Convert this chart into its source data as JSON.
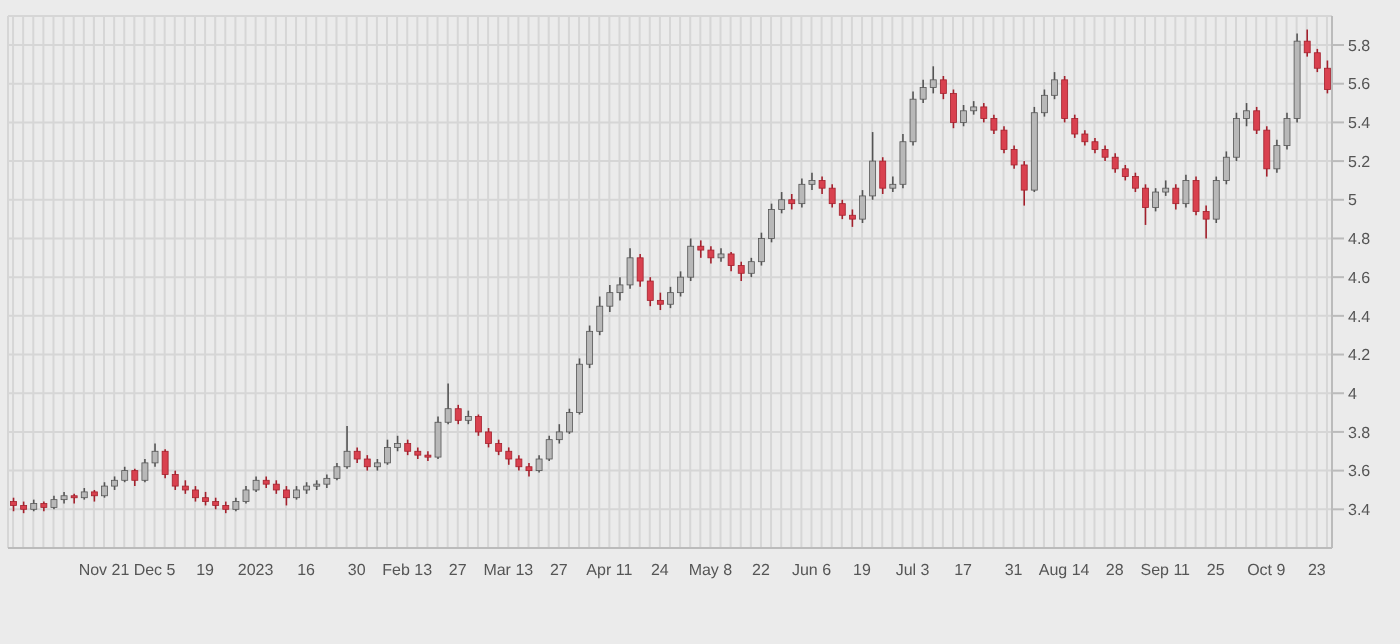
{
  "chart_data": {
    "type": "candlestick",
    "categories": [
      null,
      null,
      null,
      null,
      null,
      null,
      null,
      null,
      null,
      "Nov 21",
      null,
      null,
      null,
      null,
      "Dec 5",
      null,
      null,
      null,
      null,
      "19",
      null,
      null,
      null,
      null,
      "2023",
      null,
      null,
      null,
      null,
      "16",
      null,
      null,
      null,
      null,
      "30",
      null,
      null,
      null,
      null,
      "Feb 13",
      null,
      null,
      null,
      null,
      "27",
      null,
      null,
      null,
      null,
      "Mar 13",
      null,
      null,
      null,
      null,
      "27",
      null,
      null,
      null,
      null,
      "Apr 11",
      null,
      null,
      null,
      null,
      "24",
      null,
      null,
      null,
      null,
      "May 8",
      null,
      null,
      null,
      null,
      "22",
      null,
      null,
      null,
      null,
      "Jun 6",
      null,
      null,
      null,
      null,
      "19",
      null,
      null,
      null,
      null,
      "Jul 3",
      null,
      null,
      null,
      null,
      "17",
      null,
      null,
      null,
      null,
      "31",
      null,
      null,
      null,
      null,
      "Aug 14",
      null,
      null,
      null,
      null,
      "28",
      null,
      null,
      null,
      null,
      "Sep 11",
      null,
      null,
      null,
      null,
      "25",
      null,
      null,
      null,
      null,
      "Oct 9",
      null,
      null,
      null,
      null,
      "23",
      null
    ],
    "ohlc": [
      [
        3.44,
        3.46,
        3.39,
        3.42
      ],
      [
        3.42,
        3.44,
        3.38,
        3.4
      ],
      [
        3.4,
        3.45,
        3.39,
        3.43
      ],
      [
        3.43,
        3.44,
        3.39,
        3.41
      ],
      [
        3.41,
        3.47,
        3.4,
        3.45
      ],
      [
        3.45,
        3.49,
        3.43,
        3.47
      ],
      [
        3.47,
        3.48,
        3.43,
        3.46
      ],
      [
        3.46,
        3.51,
        3.45,
        3.49
      ],
      [
        3.49,
        3.5,
        3.44,
        3.47
      ],
      [
        3.47,
        3.54,
        3.46,
        3.52
      ],
      [
        3.52,
        3.57,
        3.5,
        3.55
      ],
      [
        3.55,
        3.62,
        3.54,
        3.6
      ],
      [
        3.6,
        3.61,
        3.52,
        3.55
      ],
      [
        3.55,
        3.66,
        3.54,
        3.64
      ],
      [
        3.64,
        3.74,
        3.62,
        3.7
      ],
      [
        3.7,
        3.71,
        3.56,
        3.58
      ],
      [
        3.58,
        3.6,
        3.5,
        3.52
      ],
      [
        3.52,
        3.55,
        3.48,
        3.5
      ],
      [
        3.5,
        3.52,
        3.44,
        3.46
      ],
      [
        3.46,
        3.49,
        3.42,
        3.44
      ],
      [
        3.44,
        3.46,
        3.4,
        3.42
      ],
      [
        3.42,
        3.44,
        3.38,
        3.4
      ],
      [
        3.4,
        3.46,
        3.39,
        3.44
      ],
      [
        3.44,
        3.52,
        3.43,
        3.5
      ],
      [
        3.5,
        3.57,
        3.49,
        3.55
      ],
      [
        3.55,
        3.57,
        3.51,
        3.53
      ],
      [
        3.53,
        3.55,
        3.48,
        3.5
      ],
      [
        3.5,
        3.52,
        3.42,
        3.46
      ],
      [
        3.46,
        3.52,
        3.45,
        3.5
      ],
      [
        3.5,
        3.54,
        3.48,
        3.52
      ],
      [
        3.52,
        3.55,
        3.5,
        3.53
      ],
      [
        3.53,
        3.58,
        3.51,
        3.56
      ],
      [
        3.56,
        3.64,
        3.55,
        3.62
      ],
      [
        3.62,
        3.83,
        3.61,
        3.7
      ],
      [
        3.7,
        3.72,
        3.64,
        3.66
      ],
      [
        3.66,
        3.68,
        3.6,
        3.62
      ],
      [
        3.62,
        3.66,
        3.6,
        3.64
      ],
      [
        3.64,
        3.76,
        3.63,
        3.72
      ],
      [
        3.72,
        3.78,
        3.7,
        3.74
      ],
      [
        3.74,
        3.76,
        3.68,
        3.7
      ],
      [
        3.7,
        3.72,
        3.66,
        3.68
      ],
      [
        3.68,
        3.7,
        3.65,
        3.67
      ],
      [
        3.67,
        3.88,
        3.66,
        3.85
      ],
      [
        3.85,
        4.05,
        3.84,
        3.92
      ],
      [
        3.92,
        3.94,
        3.84,
        3.86
      ],
      [
        3.86,
        3.91,
        3.84,
        3.88
      ],
      [
        3.88,
        3.89,
        3.78,
        3.8
      ],
      [
        3.8,
        3.82,
        3.72,
        3.74
      ],
      [
        3.74,
        3.76,
        3.68,
        3.7
      ],
      [
        3.7,
        3.72,
        3.63,
        3.66
      ],
      [
        3.66,
        3.68,
        3.6,
        3.62
      ],
      [
        3.62,
        3.64,
        3.57,
        3.6
      ],
      [
        3.6,
        3.68,
        3.59,
        3.66
      ],
      [
        3.66,
        3.78,
        3.65,
        3.76
      ],
      [
        3.76,
        3.84,
        3.74,
        3.8
      ],
      [
        3.8,
        3.92,
        3.79,
        3.9
      ],
      [
        3.9,
        4.18,
        3.89,
        4.15
      ],
      [
        4.15,
        4.35,
        4.13,
        4.32
      ],
      [
        4.32,
        4.5,
        4.3,
        4.45
      ],
      [
        4.45,
        4.56,
        4.42,
        4.52
      ],
      [
        4.52,
        4.6,
        4.48,
        4.56
      ],
      [
        4.56,
        4.75,
        4.54,
        4.7
      ],
      [
        4.7,
        4.72,
        4.55,
        4.58
      ],
      [
        4.58,
        4.6,
        4.45,
        4.48
      ],
      [
        4.48,
        4.52,
        4.43,
        4.46
      ],
      [
        4.46,
        4.55,
        4.44,
        4.52
      ],
      [
        4.52,
        4.63,
        4.5,
        4.6
      ],
      [
        4.6,
        4.8,
        4.58,
        4.76
      ],
      [
        4.76,
        4.79,
        4.7,
        4.74
      ],
      [
        4.74,
        4.76,
        4.67,
        4.7
      ],
      [
        4.7,
        4.75,
        4.68,
        4.72
      ],
      [
        4.72,
        4.73,
        4.63,
        4.66
      ],
      [
        4.66,
        4.68,
        4.58,
        4.62
      ],
      [
        4.62,
        4.7,
        4.6,
        4.68
      ],
      [
        4.68,
        4.83,
        4.66,
        4.8
      ],
      [
        4.8,
        4.98,
        4.78,
        4.95
      ],
      [
        4.95,
        5.04,
        4.93,
        5.0
      ],
      [
        5.0,
        5.03,
        4.95,
        4.98
      ],
      [
        4.98,
        5.11,
        4.96,
        5.08
      ],
      [
        5.08,
        5.14,
        5.05,
        5.1
      ],
      [
        5.1,
        5.12,
        5.03,
        5.06
      ],
      [
        5.06,
        5.08,
        4.96,
        4.98
      ],
      [
        4.98,
        5.0,
        4.9,
        4.92
      ],
      [
        4.92,
        4.95,
        4.86,
        4.9
      ],
      [
        4.9,
        5.05,
        4.88,
        5.02
      ],
      [
        5.02,
        5.35,
        5.0,
        5.2
      ],
      [
        5.2,
        5.22,
        5.03,
        5.06
      ],
      [
        5.06,
        5.12,
        5.04,
        5.08
      ],
      [
        5.08,
        5.34,
        5.06,
        5.3
      ],
      [
        5.3,
        5.56,
        5.28,
        5.52
      ],
      [
        5.52,
        5.62,
        5.5,
        5.58
      ],
      [
        5.58,
        5.69,
        5.55,
        5.62
      ],
      [
        5.62,
        5.64,
        5.52,
        5.55
      ],
      [
        5.55,
        5.57,
        5.37,
        5.4
      ],
      [
        5.4,
        5.49,
        5.38,
        5.46
      ],
      [
        5.46,
        5.51,
        5.44,
        5.48
      ],
      [
        5.48,
        5.5,
        5.4,
        5.42
      ],
      [
        5.42,
        5.44,
        5.34,
        5.36
      ],
      [
        5.36,
        5.38,
        5.24,
        5.26
      ],
      [
        5.26,
        5.28,
        5.16,
        5.18
      ],
      [
        5.18,
        5.2,
        4.97,
        5.05
      ],
      [
        5.05,
        5.48,
        5.04,
        5.45
      ],
      [
        5.45,
        5.57,
        5.43,
        5.54
      ],
      [
        5.54,
        5.66,
        5.52,
        5.62
      ],
      [
        5.62,
        5.64,
        5.4,
        5.42
      ],
      [
        5.42,
        5.44,
        5.32,
        5.34
      ],
      [
        5.34,
        5.36,
        5.28,
        5.3
      ],
      [
        5.3,
        5.32,
        5.24,
        5.26
      ],
      [
        5.26,
        5.28,
        5.2,
        5.22
      ],
      [
        5.22,
        5.24,
        5.14,
        5.16
      ],
      [
        5.16,
        5.18,
        5.1,
        5.12
      ],
      [
        5.12,
        5.14,
        5.04,
        5.06
      ],
      [
        5.06,
        5.08,
        4.87,
        4.96
      ],
      [
        4.96,
        5.06,
        4.94,
        5.04
      ],
      [
        5.04,
        5.1,
        5.02,
        5.06
      ],
      [
        5.06,
        5.08,
        4.95,
        4.98
      ],
      [
        4.98,
        5.13,
        4.96,
        5.1
      ],
      [
        5.1,
        5.12,
        4.92,
        4.94
      ],
      [
        4.94,
        4.97,
        4.8,
        4.9
      ],
      [
        4.9,
        5.12,
        4.88,
        5.1
      ],
      [
        5.1,
        5.25,
        5.08,
        5.22
      ],
      [
        5.22,
        5.45,
        5.2,
        5.42
      ],
      [
        5.42,
        5.5,
        5.38,
        5.46
      ],
      [
        5.46,
        5.48,
        5.34,
        5.36
      ],
      [
        5.36,
        5.38,
        5.12,
        5.16
      ],
      [
        5.16,
        5.31,
        5.14,
        5.28
      ],
      [
        5.28,
        5.45,
        5.26,
        5.42
      ],
      [
        5.42,
        5.86,
        5.4,
        5.82
      ],
      [
        5.82,
        5.88,
        5.74,
        5.76
      ],
      [
        5.76,
        5.78,
        5.66,
        5.68
      ],
      [
        5.68,
        5.72,
        5.55,
        5.57
      ]
    ],
    "ylim": [
      3.2,
      5.95
    ],
    "yticks": [
      3.4,
      3.6,
      3.8,
      4,
      4.2,
      4.4,
      4.6,
      4.8,
      5,
      5.2,
      5.4,
      5.6,
      5.8
    ],
    "grid": true
  }
}
